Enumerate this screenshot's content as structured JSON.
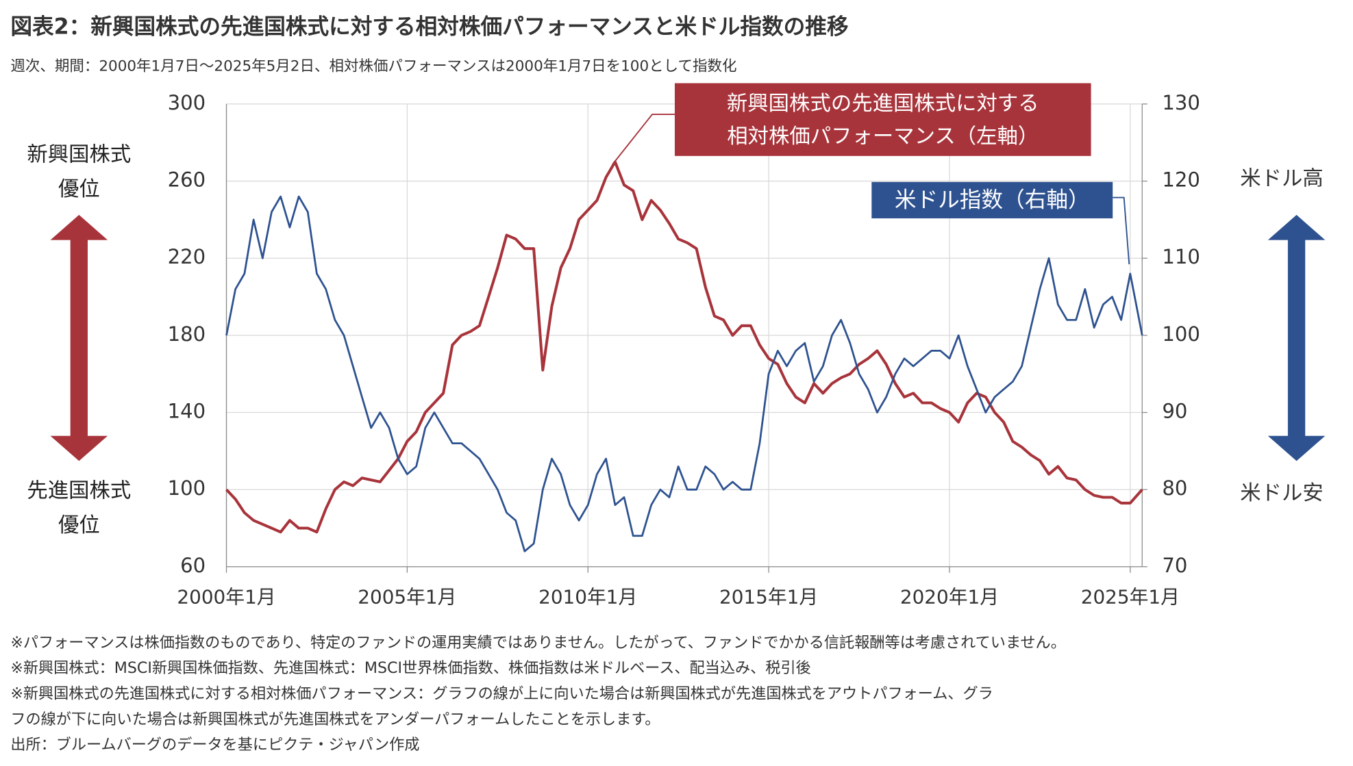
{
  "chart_data": {
    "type": "line",
    "title": "図表2：新興国株式の先進国株式に対する相対株価パフォーマンスと米ドル指数の推移",
    "subtitle": "週次、期間：2000年1月7日～2025年5月2日、相対株価パフォーマンスは2000年1月7日を100として指数化",
    "x": [
      2000,
      2000.25,
      2000.5,
      2000.75,
      2001,
      2001.25,
      2001.5,
      2001.75,
      2002,
      2002.25,
      2002.5,
      2002.75,
      2003,
      2003.25,
      2003.5,
      2003.75,
      2004,
      2004.25,
      2004.5,
      2004.75,
      2005,
      2005.25,
      2005.5,
      2005.75,
      2006,
      2006.25,
      2006.5,
      2006.75,
      2007,
      2007.25,
      2007.5,
      2007.75,
      2008,
      2008.25,
      2008.5,
      2008.75,
      2009,
      2009.25,
      2009.5,
      2009.75,
      2010,
      2010.25,
      2010.5,
      2010.75,
      2011,
      2011.25,
      2011.5,
      2011.75,
      2012,
      2012.25,
      2012.5,
      2012.75,
      2013,
      2013.25,
      2013.5,
      2013.75,
      2014,
      2014.25,
      2014.5,
      2014.75,
      2015,
      2015.25,
      2015.5,
      2015.75,
      2016,
      2016.25,
      2016.5,
      2016.75,
      2017,
      2017.25,
      2017.5,
      2017.75,
      2018,
      2018.25,
      2018.5,
      2018.75,
      2019,
      2019.25,
      2019.5,
      2019.75,
      2020,
      2020.25,
      2020.5,
      2020.75,
      2021,
      2021.25,
      2021.5,
      2021.75,
      2022,
      2022.25,
      2022.5,
      2022.75,
      2023,
      2023.25,
      2023.5,
      2023.75,
      2024,
      2024.25,
      2024.5,
      2024.75,
      2025,
      2025.33
    ],
    "series": [
      {
        "name": "新興国株式の先進国株式に対する\n相対株価パフォーマンス（左軸）",
        "color": "#a8343b",
        "values": [
          100,
          95,
          88,
          84,
          82,
          80,
          78,
          84,
          80,
          80,
          78,
          90,
          100,
          104,
          102,
          106,
          105,
          104,
          110,
          116,
          125,
          130,
          140,
          145,
          150,
          175,
          180,
          182,
          185,
          200,
          215,
          232,
          230,
          225,
          225,
          162,
          195,
          215,
          225,
          240,
          245,
          250,
          262,
          270,
          258,
          255,
          240,
          250,
          245,
          238,
          230,
          228,
          225,
          205,
          190,
          188,
          180,
          185,
          185,
          175,
          168,
          165,
          155,
          148,
          145,
          155,
          150,
          155,
          158,
          160,
          165,
          168,
          172,
          165,
          155,
          148,
          150,
          145,
          145,
          142,
          140,
          135,
          145,
          150,
          148,
          140,
          135,
          125,
          122,
          118,
          115,
          108,
          112,
          106,
          105,
          100,
          97,
          96,
          96,
          93,
          93,
          100
        ]
      },
      {
        "name": "米ドル指数（右軸）",
        "color": "#2e5290",
        "axis": "y2",
        "values": [
          100,
          106,
          108,
          115,
          110,
          116,
          118,
          114,
          118,
          116,
          108,
          106,
          102,
          100,
          96,
          92,
          88,
          90,
          88,
          84,
          82,
          83,
          88,
          90,
          88,
          86,
          86,
          85,
          84,
          82,
          80,
          77,
          76,
          72,
          73,
          80,
          84,
          82,
          78,
          76,
          78,
          82,
          84,
          78,
          79,
          74,
          74,
          78,
          80,
          79,
          83,
          80,
          80,
          83,
          82,
          80,
          81,
          80,
          80,
          86,
          95,
          98,
          96,
          98,
          99,
          94,
          96,
          100,
          102,
          99,
          95,
          93,
          90,
          92,
          95,
          97,
          96,
          97,
          98,
          98,
          97,
          100,
          96,
          93,
          90,
          92,
          93,
          94,
          96,
          101,
          106,
          110,
          104,
          102,
          102,
          106,
          101,
          104,
          105,
          102,
          108,
          100
        ]
      }
    ],
    "xlim": [
      2000,
      2025.33
    ],
    "xticks": [
      {
        "value": 2000,
        "label": "2000年1月"
      },
      {
        "value": 2005,
        "label": "2005年1月"
      },
      {
        "value": 2010,
        "label": "2010年1月"
      },
      {
        "value": 2015,
        "label": "2015年1月"
      },
      {
        "value": 2020,
        "label": "2020年1月"
      },
      {
        "value": 2025,
        "label": "2025年1月"
      }
    ],
    "ylim": [
      60,
      300
    ],
    "yticks": [
      60,
      100,
      140,
      180,
      220,
      260,
      300
    ],
    "y2lim": [
      70,
      130
    ],
    "y2ticks": [
      70,
      80,
      90,
      100,
      110,
      120,
      130
    ],
    "grid": true,
    "annotations": {
      "left_top": "新興国株式\n優位",
      "left_bottom": "先進国株式\n優位",
      "right_top": "米ドル高",
      "right_bottom": "米ドル安"
    },
    "footnotes": [
      "※パフォーマンスは株価指数のものであり、特定のファンドの運用実績ではありません。したがって、ファンドでかかる信託報酬等は考慮されていません。",
      "※新興国株式：MSCI新興国株価指数、先進国株式：MSCI世界株価指数、株価指数は米ドルベース、配当込み、税引後",
      "※新興国株式の先進国株式に対する相対株価パフォーマンス：グラフの線が上に向いた場合は新興国株式が先進国株式をアウトパフォーム、グラ",
      "フの線が下に向いた場合は新興国株式が先進国株式をアンダーパフォームしたことを示します。",
      "出所：ブルームバーグのデータを基にピクテ・ジャパン作成"
    ]
  }
}
